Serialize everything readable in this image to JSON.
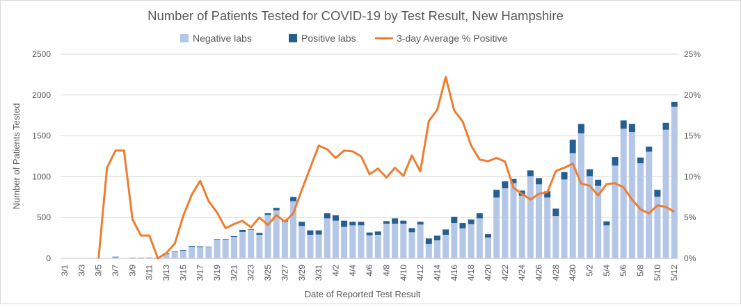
{
  "chart_data": {
    "type": "bar",
    "title": "Number of Patients Tested for COVID-19 by Test Result, New Hampshire",
    "xlabel": "Date of Reported Test Result",
    "ylabel": "Number of Patients Tested",
    "ylim": [
      0,
      2500
    ],
    "y_ticks": [
      "0",
      "500",
      "1000",
      "1500",
      "2000",
      "2500"
    ],
    "y2lim": [
      0,
      25
    ],
    "y2_ticks": [
      "0%",
      "5%",
      "10%",
      "15%",
      "20%",
      "25%"
    ],
    "grid": true,
    "legend_position": "top",
    "x_tick_labels": [
      "3/1",
      "3/3",
      "3/5",
      "3/7",
      "3/9",
      "3/11",
      "3/13",
      "3/15",
      "3/17",
      "3/19",
      "3/21",
      "3/23",
      "3/25",
      "3/27",
      "3/29",
      "3/31",
      "4/2",
      "4/4",
      "4/6",
      "4/8",
      "4/10",
      "4/12",
      "4/14",
      "4/16",
      "4/18",
      "4/20",
      "4/22",
      "4/24",
      "4/26",
      "4/28",
      "4/30",
      "5/2",
      "5/4",
      "5/6",
      "5/8",
      "5/10",
      "5/12"
    ],
    "series": [
      {
        "name": "Negative labs",
        "type": "bar",
        "color": "#b4c7e7",
        "values": [
          0,
          0,
          0,
          0,
          4,
          2,
          14,
          2,
          10,
          10,
          12,
          14,
          55,
          78,
          95,
          143,
          137,
          139,
          232,
          232,
          264,
          324,
          351,
          289,
          532,
          589,
          450,
          700,
          397,
          289,
          292,
          490,
          462,
          385,
          405,
          405,
          283,
          289,
          425,
          425,
          425,
          320,
          414,
          178,
          221,
          289,
          433,
          368,
          419,
          490,
          255,
          745,
          858,
          921,
          768,
          1006,
          907,
          745,
          518,
          966,
          1289,
          1530,
          1006,
          887,
          405,
          1136,
          1587,
          1547,
          1164,
          1306,
          754,
          1575,
          1856
        ]
      },
      {
        "name": "Positive labs",
        "type": "bar",
        "color": "#255e91",
        "values": [
          0,
          0,
          0,
          0,
          1,
          0,
          6,
          0,
          1,
          1,
          1,
          1,
          10,
          7,
          7,
          10,
          10,
          5,
          6,
          6,
          8,
          25,
          6,
          23,
          20,
          29,
          15,
          51,
          51,
          54,
          51,
          62,
          65,
          77,
          43,
          43,
          34,
          40,
          31,
          65,
          37,
          51,
          34,
          66,
          57,
          65,
          77,
          65,
          57,
          62,
          42,
          94,
          85,
          51,
          62,
          71,
          76,
          77,
          91,
          91,
          164,
          116,
          85,
          76,
          48,
          105,
          102,
          99,
          71,
          62,
          85,
          85,
          59
        ]
      },
      {
        "name": "3-day Average % Positive",
        "type": "line",
        "axis": "right",
        "color": "#ed7d31",
        "values": [
          null,
          null,
          null,
          null,
          0,
          11.1,
          13.2,
          13.2,
          4.8,
          2.8,
          2.8,
          0,
          0.65,
          1.8,
          5.2,
          7.8,
          9.5,
          7.0,
          5.6,
          3.7,
          4.2,
          4.6,
          3.8,
          5.0,
          4.1,
          5.3,
          4.5,
          5.5,
          8.4,
          11.1,
          13.8,
          13.35,
          12.3,
          13.2,
          13.1,
          12.5,
          10.3,
          11.0,
          9.9,
          11.1,
          10.1,
          12.6,
          10.65,
          16.8,
          18.2,
          22.2,
          18.1,
          16.75,
          13.8,
          12.1,
          11.9,
          12.3,
          11.85,
          8.65,
          7.9,
          7.2,
          7.9,
          8.1,
          10.7,
          11.1,
          11.6,
          9.15,
          8.9,
          7.7,
          9.1,
          9.2,
          8.7,
          7.2,
          6.0,
          5.5,
          6.5,
          6.3,
          5.7
        ]
      }
    ]
  }
}
